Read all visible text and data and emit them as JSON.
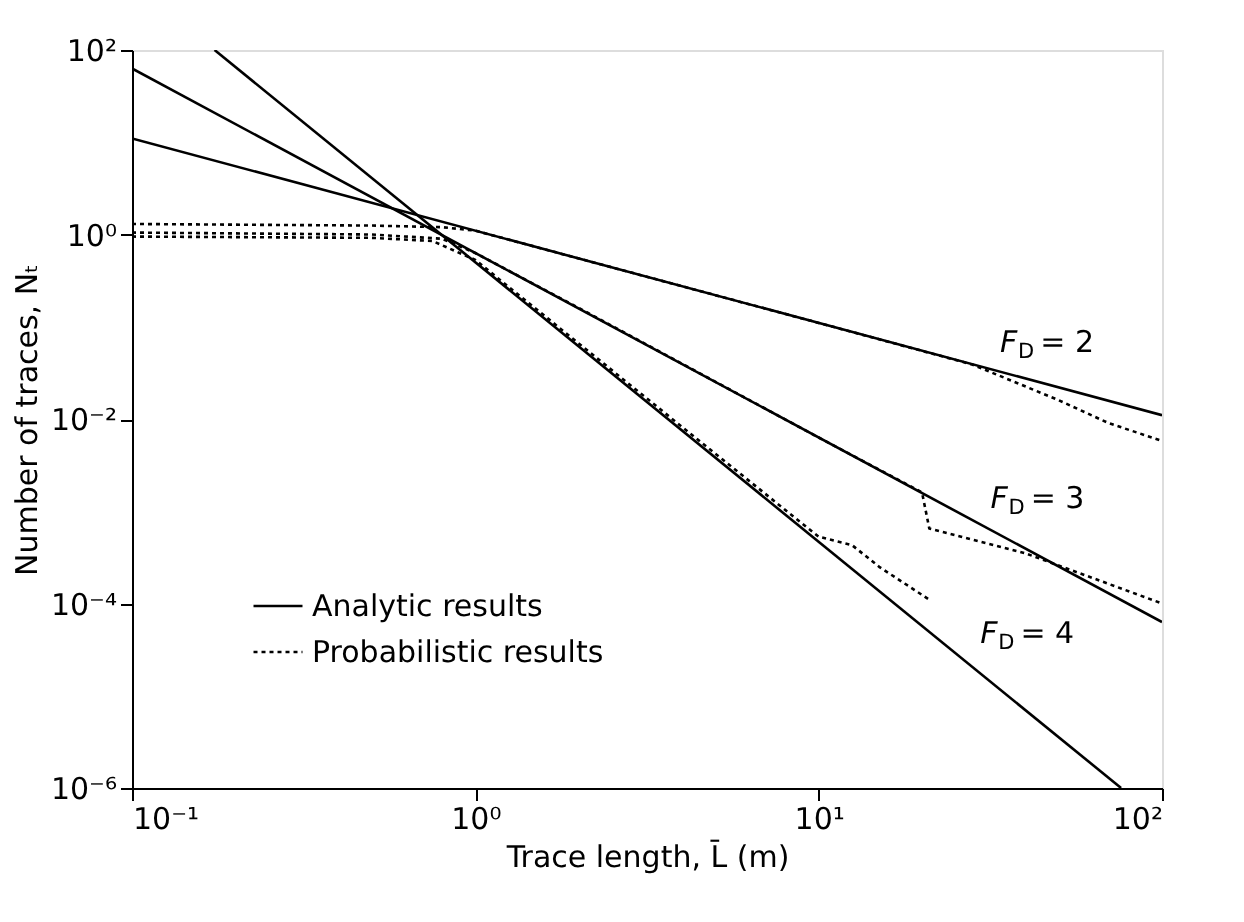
{
  "chart_data": {
    "type": "line",
    "xlabel": "Trace length, L̄ (m)",
    "ylabel": "Number of traces, Nₜ",
    "log": "xy",
    "grid": false,
    "legend": "bottom left",
    "xlim": [
      0.1,
      100
    ],
    "xticks": [
      {
        "value": 0.1,
        "label": "10⁻¹"
      },
      {
        "value": 1,
        "label": "10⁰"
      },
      {
        "value": 10,
        "label": "10¹"
      },
      {
        "value": 100,
        "label": "10²"
      }
    ],
    "ylim": [
      1e-06,
      100
    ],
    "yticks": [
      {
        "value": 1e-06,
        "label": "10⁻⁶"
      },
      {
        "value": 0.0001,
        "label": "10⁻⁴"
      },
      {
        "value": 0.01,
        "label": "10⁻²"
      },
      {
        "value": 1,
        "label": "10⁰"
      },
      {
        "value": 100,
        "label": "10²"
      }
    ],
    "series": [
      {
        "name": "Analytic results",
        "color": "#000000",
        "line_style": "solid",
        "x": [
          0.1,
          100
        ],
        "values": [
          11,
          0.011
        ]
      },
      {
        "color": "#000000",
        "line_style": "solid",
        "x": [
          0.1,
          100
        ],
        "values": [
          63,
          6.3e-05
        ]
      },
      {
        "color": "#000000",
        "line_style": "solid",
        "x": [
          0.174,
          76
        ],
        "values": [
          100,
          1e-06
        ]
      },
      {
        "name": "Probabilistic results",
        "color": "#000000",
        "line_style": "dotted",
        "x": [
          0.1,
          0.5,
          0.8,
          1,
          2,
          10,
          28,
          50,
          70,
          100
        ],
        "values": [
          1.3,
          1.25,
          1.2,
          1.1,
          0.55,
          0.11,
          0.039,
          0.016,
          0.009,
          0.0058
        ]
      },
      {
        "color": "#000000",
        "line_style": "dotted",
        "x": [
          0.1,
          0.5,
          0.8,
          1,
          2,
          10,
          20,
          21,
          40,
          100
        ],
        "values": [
          1.05,
          1.0,
          0.9,
          0.63,
          0.16,
          0.0063,
          0.0016,
          0.00065,
          0.00035,
          0.0001
        ]
      },
      {
        "color": "#000000",
        "line_style": "dotted",
        "x": [
          0.1,
          0.5,
          0.75,
          1,
          2,
          5,
          10,
          12.5,
          15,
          21
        ],
        "values": [
          0.95,
          0.92,
          0.85,
          0.53,
          0.066,
          0.0042,
          0.00053,
          0.00043,
          0.00025,
          0.00011
        ]
      }
    ],
    "annotations": [
      {
        "text": "F$_{D}$ = 2",
        "x": 32,
        "y": 0.034
      },
      {
        "text": "F$_{D}$ = 3",
        "x": 30,
        "y": 0.0007
      },
      {
        "text": "F$_{D}$ = 4",
        "x": 28,
        "y": 2.4e-05
      }
    ]
  }
}
